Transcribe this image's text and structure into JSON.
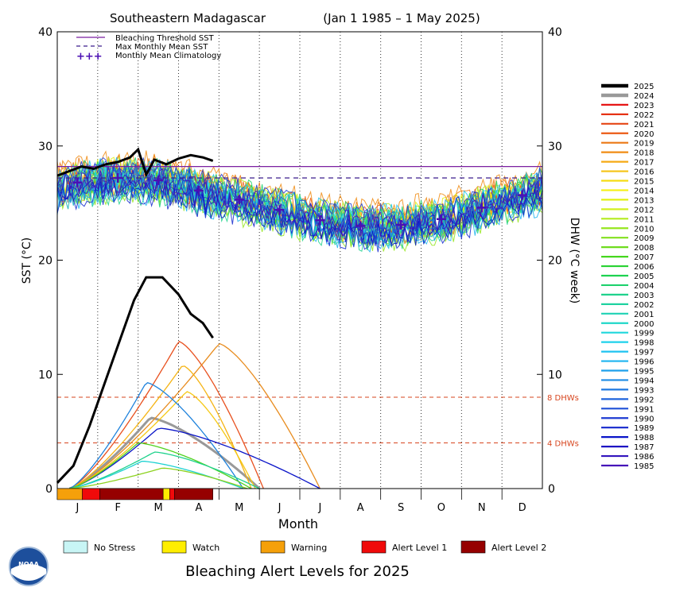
{
  "chart_data": {
    "type": "line",
    "title_region": "Southeastern Madagascar",
    "title_range": "(Jan 1 1985 – 1 May 2025)",
    "xlabel": "Month",
    "ylabel_left": "SST (°C)",
    "ylabel_right": "DHW (°C week)",
    "ylim": [
      0,
      40
    ],
    "yticks": [
      "0",
      "10",
      "20",
      "30",
      "40"
    ],
    "months": [
      "J",
      "F",
      "M",
      "A",
      "M",
      "J",
      "J",
      "A",
      "S",
      "O",
      "N",
      "D"
    ],
    "bleaching_threshold_sst": 28.2,
    "max_monthly_mean_sst": 27.2,
    "dhw_lines": [
      {
        "value": 8,
        "label": "8 DHWs"
      },
      {
        "value": 4,
        "label": "4 DHWs"
      }
    ],
    "legend": [
      {
        "label": "Bleaching Threshold SST",
        "style": "solid",
        "color": "#7a1fa0"
      },
      {
        "label": "Max Monthly Mean SST",
        "style": "dashed",
        "color": "#3a1c8c"
      },
      {
        "label": "Monthly Mean Climatology",
        "style": "plus",
        "color": "#4b0fb4"
      }
    ],
    "climatology": [
      {
        "m": 0.5,
        "sst": 26.8
      },
      {
        "m": 1.5,
        "sst": 27.2
      },
      {
        "m": 2.5,
        "sst": 27.0
      },
      {
        "m": 3.5,
        "sst": 26.1
      },
      {
        "m": 4.5,
        "sst": 25.3
      },
      {
        "m": 5.5,
        "sst": 24.4
      },
      {
        "m": 6.5,
        "sst": 23.5
      },
      {
        "m": 7.5,
        "sst": 23.0
      },
      {
        "m": 8.5,
        "sst": 23.1
      },
      {
        "m": 9.5,
        "sst": 23.6
      },
      {
        "m": 10.5,
        "sst": 24.6
      },
      {
        "m": 11.5,
        "sst": 25.7
      }
    ],
    "sst_2025": [
      {
        "m": 0.0,
        "sst": 27.4
      },
      {
        "m": 0.3,
        "sst": 27.8
      },
      {
        "m": 0.6,
        "sst": 28.2
      },
      {
        "m": 0.9,
        "sst": 28.0
      },
      {
        "m": 1.2,
        "sst": 28.4
      },
      {
        "m": 1.5,
        "sst": 28.6
      },
      {
        "m": 1.8,
        "sst": 29.0
      },
      {
        "m": 2.0,
        "sst": 29.7
      },
      {
        "m": 2.2,
        "sst": 27.5
      },
      {
        "m": 2.4,
        "sst": 28.8
      },
      {
        "m": 2.7,
        "sst": 28.4
      },
      {
        "m": 3.0,
        "sst": 28.9
      },
      {
        "m": 3.3,
        "sst": 29.2
      },
      {
        "m": 3.6,
        "sst": 29.0
      },
      {
        "m": 3.85,
        "sst": 28.7
      }
    ],
    "dhw_2025": [
      {
        "m": 0.0,
        "dhw": 0.5
      },
      {
        "m": 0.4,
        "dhw": 2.0
      },
      {
        "m": 0.8,
        "dhw": 5.5
      },
      {
        "m": 1.2,
        "dhw": 9.5
      },
      {
        "m": 1.6,
        "dhw": 13.5
      },
      {
        "m": 1.9,
        "dhw": 16.5
      },
      {
        "m": 2.2,
        "dhw": 18.5
      },
      {
        "m": 2.6,
        "dhw": 18.5
      },
      {
        "m": 3.0,
        "dhw": 17.0
      },
      {
        "m": 3.3,
        "dhw": 15.3
      },
      {
        "m": 3.6,
        "dhw": 14.5
      },
      {
        "m": 3.85,
        "dhw": 13.2
      }
    ],
    "dhw_other_years": [
      {
        "year": "2024",
        "color": "#999999",
        "peak": 6.2,
        "peak_m": 2.3,
        "end_m": 5.0
      },
      {
        "year": "2022",
        "color": "#e8501e",
        "peak": 12.9,
        "peak_m": 3.0,
        "end_m": 5.1
      },
      {
        "year": "2019",
        "color": "#e88c1e",
        "peak": 12.7,
        "peak_m": 4.0,
        "end_m": 6.5
      },
      {
        "year": "2017",
        "color": "#f5b414",
        "peak": 10.8,
        "peak_m": 3.1,
        "end_m": 4.8
      },
      {
        "year": "2016",
        "color": "#f5c814",
        "peak": 8.5,
        "peak_m": 3.2,
        "end_m": 4.9
      },
      {
        "year": "1994",
        "color": "#1e82dc",
        "peak": 9.3,
        "peak_m": 2.2,
        "end_m": 4.6
      },
      {
        "year": "1988",
        "color": "#0a14c8",
        "peak": 5.3,
        "peak_m": 2.5,
        "end_m": 6.5
      },
      {
        "year": "2008",
        "color": "#50d21e",
        "peak": 4.0,
        "peak_m": 2.0,
        "end_m": 4.8
      },
      {
        "year": "2003",
        "color": "#1ed28c",
        "peak": 3.2,
        "peak_m": 2.4,
        "end_m": 5.0
      },
      {
        "year": "1998",
        "color": "#1ed2d2",
        "peak": 2.4,
        "peak_m": 2.1,
        "end_m": 4.6
      },
      {
        "year": "2010",
        "color": "#8cd21e",
        "peak": 1.8,
        "peak_m": 2.6,
        "end_m": 4.7
      }
    ],
    "year_legend": [
      {
        "year": "2025",
        "color": "#000000",
        "bold": true
      },
      {
        "year": "2024",
        "color": "#999999",
        "bold": true
      },
      {
        "year": "2023",
        "color": "#e61414"
      },
      {
        "year": "2022",
        "color": "#e63214"
      },
      {
        "year": "2021",
        "color": "#e64614"
      },
      {
        "year": "2020",
        "color": "#eb5a14"
      },
      {
        "year": "2019",
        "color": "#eb7814"
      },
      {
        "year": "2018",
        "color": "#f08c14"
      },
      {
        "year": "2017",
        "color": "#f5aa14"
      },
      {
        "year": "2016",
        "color": "#f5c314"
      },
      {
        "year": "2015",
        "color": "#f5dc14"
      },
      {
        "year": "2014",
        "color": "#f5f014"
      },
      {
        "year": "2013",
        "color": "#e1f014"
      },
      {
        "year": "2012",
        "color": "#d2f01e"
      },
      {
        "year": "2011",
        "color": "#b4eb1e"
      },
      {
        "year": "2010",
        "color": "#96e61e"
      },
      {
        "year": "2009",
        "color": "#82e11e"
      },
      {
        "year": "2008",
        "color": "#6edc1e"
      },
      {
        "year": "2007",
        "color": "#46d71e"
      },
      {
        "year": "2006",
        "color": "#28d232"
      },
      {
        "year": "2005",
        "color": "#1ed250"
      },
      {
        "year": "2004",
        "color": "#1ed26e"
      },
      {
        "year": "2003",
        "color": "#1ed28c"
      },
      {
        "year": "2002",
        "color": "#1ed2a0"
      },
      {
        "year": "2001",
        "color": "#1ed2b4"
      },
      {
        "year": "2000",
        "color": "#1ed7c8"
      },
      {
        "year": "1999",
        "color": "#1ed7dc"
      },
      {
        "year": "1998",
        "color": "#1ed2eb"
      },
      {
        "year": "1997",
        "color": "#1ec3f0"
      },
      {
        "year": "1996",
        "color": "#1eb4f0"
      },
      {
        "year": "1995",
        "color": "#1ea0eb"
      },
      {
        "year": "1994",
        "color": "#1e8ce6"
      },
      {
        "year": "1993",
        "color": "#1e78e1"
      },
      {
        "year": "1992",
        "color": "#1e64dc"
      },
      {
        "year": "1991",
        "color": "#1e50d7"
      },
      {
        "year": "1990",
        "color": "#1e3cd2"
      },
      {
        "year": "1989",
        "color": "#1428cd"
      },
      {
        "year": "1988",
        "color": "#0a14c8"
      },
      {
        "year": "1987",
        "color": "#1e14c3"
      },
      {
        "year": "1986",
        "color": "#3214be"
      },
      {
        "year": "1985",
        "color": "#4614b9"
      }
    ],
    "alert_strip_2025": [
      {
        "from": 0.0,
        "to": 0.62,
        "level": "warning"
      },
      {
        "from": 0.62,
        "to": 1.05,
        "level": "alert1"
      },
      {
        "from": 1.05,
        "to": 2.62,
        "level": "alert2"
      },
      {
        "from": 2.62,
        "to": 2.78,
        "level": "watch"
      },
      {
        "from": 2.78,
        "to": 2.9,
        "level": "alert1"
      },
      {
        "from": 2.9,
        "to": 3.85,
        "level": "alert2"
      }
    ],
    "alert_levels": [
      {
        "key": "nostress",
        "label": "No Stress",
        "color": "#c8f5f5"
      },
      {
        "key": "watch",
        "label": "Watch",
        "color": "#ffee00"
      },
      {
        "key": "warning",
        "label": "Warning",
        "color": "#f5a00a"
      },
      {
        "key": "alert1",
        "label": "Alert Level 1",
        "color": "#f00a0a"
      },
      {
        "key": "alert2",
        "label": "Alert Level 2",
        "color": "#960000"
      }
    ],
    "footer_title": "Bleaching Alert Levels for 2025",
    "logo_text": "NOAA"
  }
}
